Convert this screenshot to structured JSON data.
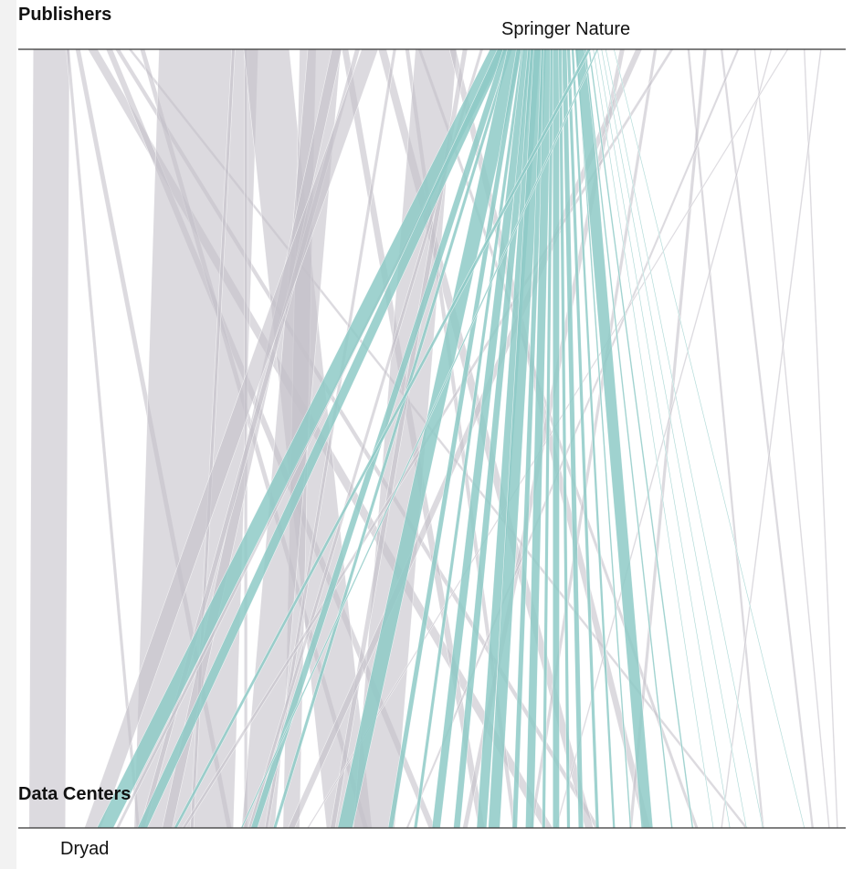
{
  "header": {
    "top_axis_title": "Publishers",
    "bottom_axis_title": "Data Centers"
  },
  "labels": {
    "top_highlight": "Springer Nature",
    "bottom_highlight": "Dryad"
  },
  "colors": {
    "highlight": "#8ecac7",
    "gray": "#c4c1c9",
    "axis": "#333333",
    "background": "#ffffff"
  },
  "chart_data": {
    "type": "parallel-sets",
    "top_axis": "Publishers",
    "bottom_axis": "Data Centers",
    "highlighted_publisher": "Springer Nature",
    "highlighted_data_center": "Dryad",
    "flows": [
      {
        "from": 0.04,
        "to": 0.035,
        "weight": 0.044,
        "hl": false
      },
      {
        "from": 0.06,
        "to": 0.145,
        "weight": 0.004,
        "hl": false
      },
      {
        "from": 0.072,
        "to": 0.255,
        "weight": 0.006,
        "hl": false
      },
      {
        "from": 0.09,
        "to": 0.64,
        "weight": 0.012,
        "hl": false
      },
      {
        "from": 0.11,
        "to": 0.5,
        "weight": 0.008,
        "hl": false
      },
      {
        "from": 0.12,
        "to": 0.7,
        "weight": 0.006,
        "hl": false
      },
      {
        "from": 0.135,
        "to": 0.88,
        "weight": 0.004,
        "hl": false
      },
      {
        "from": 0.15,
        "to": 0.42,
        "weight": 0.006,
        "hl": false
      },
      {
        "from": 0.23,
        "to": 0.2,
        "weight": 0.12,
        "hl": false
      },
      {
        "from": 0.26,
        "to": 0.21,
        "weight": 0.004,
        "hl": false
      },
      {
        "from": 0.275,
        "to": 0.275,
        "weight": 0.004,
        "hl": false
      },
      {
        "from": 0.3,
        "to": 0.4,
        "weight": 0.055,
        "hl": false
      },
      {
        "from": 0.35,
        "to": 0.33,
        "weight": 0.02,
        "hl": false
      },
      {
        "from": 0.37,
        "to": 0.29,
        "weight": 0.04,
        "hl": false
      },
      {
        "from": 0.385,
        "to": 0.18,
        "weight": 0.012,
        "hl": false
      },
      {
        "from": 0.395,
        "to": 0.56,
        "weight": 0.008,
        "hl": false
      },
      {
        "from": 0.41,
        "to": 0.15,
        "weight": 0.006,
        "hl": false
      },
      {
        "from": 0.425,
        "to": 0.09,
        "weight": 0.02,
        "hl": false
      },
      {
        "from": 0.44,
        "to": 0.69,
        "weight": 0.01,
        "hl": false
      },
      {
        "from": 0.455,
        "to": 0.3,
        "weight": 0.004,
        "hl": false
      },
      {
        "from": 0.47,
        "to": 0.6,
        "weight": 0.005,
        "hl": false
      },
      {
        "from": 0.485,
        "to": 0.82,
        "weight": 0.004,
        "hl": false
      },
      {
        "from": 0.505,
        "to": 0.43,
        "weight": 0.05,
        "hl": false
      },
      {
        "from": 0.525,
        "to": 0.76,
        "weight": 0.008,
        "hl": false
      },
      {
        "from": 0.54,
        "to": 0.38,
        "weight": 0.006,
        "hl": false
      },
      {
        "from": 0.56,
        "to": 0.28,
        "weight": 0.004,
        "hl": false
      },
      {
        "from": 0.585,
        "to": 0.12,
        "weight": 0.004,
        "hl": false
      },
      {
        "from": 0.58,
        "to": 0.105,
        "weight": 0.02,
        "hl": true
      },
      {
        "from": 0.585,
        "to": 0.15,
        "weight": 0.012,
        "hl": true
      },
      {
        "from": 0.59,
        "to": 0.285,
        "weight": 0.008,
        "hl": true
      },
      {
        "from": 0.595,
        "to": 0.31,
        "weight": 0.004,
        "hl": true
      },
      {
        "from": 0.6,
        "to": 0.395,
        "weight": 0.018,
        "hl": true
      },
      {
        "from": 0.605,
        "to": 0.45,
        "weight": 0.006,
        "hl": true
      },
      {
        "from": 0.61,
        "to": 0.48,
        "weight": 0.004,
        "hl": true
      },
      {
        "from": 0.615,
        "to": 0.505,
        "weight": 0.01,
        "hl": true
      },
      {
        "from": 0.62,
        "to": 0.53,
        "weight": 0.008,
        "hl": true
      },
      {
        "from": 0.625,
        "to": 0.56,
        "weight": 0.012,
        "hl": true
      },
      {
        "from": 0.63,
        "to": 0.575,
        "weight": 0.014,
        "hl": true
      },
      {
        "from": 0.635,
        "to": 0.6,
        "weight": 0.006,
        "hl": true
      },
      {
        "from": 0.64,
        "to": 0.618,
        "weight": 0.01,
        "hl": true
      },
      {
        "from": 0.645,
        "to": 0.635,
        "weight": 0.004,
        "hl": true
      },
      {
        "from": 0.65,
        "to": 0.65,
        "weight": 0.008,
        "hl": true
      },
      {
        "from": 0.655,
        "to": 0.665,
        "weight": 0.004,
        "hl": true
      },
      {
        "from": 0.66,
        "to": 0.68,
        "weight": 0.006,
        "hl": true
      },
      {
        "from": 0.665,
        "to": 0.7,
        "weight": 0.004,
        "hl": true
      },
      {
        "from": 0.67,
        "to": 0.72,
        "weight": 0.003,
        "hl": true
      },
      {
        "from": 0.675,
        "to": 0.74,
        "weight": 0.002,
        "hl": true
      },
      {
        "from": 0.68,
        "to": 0.76,
        "weight": 0.014,
        "hl": true
      },
      {
        "from": 0.685,
        "to": 0.79,
        "weight": 0.002,
        "hl": true
      },
      {
        "from": 0.69,
        "to": 0.815,
        "weight": 0.002,
        "hl": true
      },
      {
        "from": 0.695,
        "to": 0.84,
        "weight": 0.001,
        "hl": true
      },
      {
        "from": 0.7,
        "to": 0.86,
        "weight": 0.001,
        "hl": true
      },
      {
        "from": 0.705,
        "to": 0.88,
        "weight": 0.001,
        "hl": true
      },
      {
        "from": 0.71,
        "to": 0.9,
        "weight": 0.001,
        "hl": true
      },
      {
        "from": 0.69,
        "to": 0.19,
        "weight": 0.004,
        "hl": true
      },
      {
        "from": 0.7,
        "to": 0.27,
        "weight": 0.002,
        "hl": true
      },
      {
        "from": 0.72,
        "to": 0.95,
        "weight": 0.001,
        "hl": true
      },
      {
        "from": 0.73,
        "to": 0.54,
        "weight": 0.006,
        "hl": false
      },
      {
        "from": 0.75,
        "to": 0.33,
        "weight": 0.008,
        "hl": false
      },
      {
        "from": 0.77,
        "to": 0.62,
        "weight": 0.004,
        "hl": false
      },
      {
        "from": 0.79,
        "to": 0.2,
        "weight": 0.004,
        "hl": false
      },
      {
        "from": 0.81,
        "to": 0.9,
        "weight": 0.003,
        "hl": false
      },
      {
        "from": 0.83,
        "to": 0.74,
        "weight": 0.004,
        "hl": false
      },
      {
        "from": 0.85,
        "to": 0.96,
        "weight": 0.003,
        "hl": false
      },
      {
        "from": 0.87,
        "to": 0.47,
        "weight": 0.003,
        "hl": false
      },
      {
        "from": 0.89,
        "to": 0.98,
        "weight": 0.002,
        "hl": false
      },
      {
        "from": 0.91,
        "to": 0.65,
        "weight": 0.002,
        "hl": false
      },
      {
        "from": 0.93,
        "to": 0.35,
        "weight": 0.002,
        "hl": false
      },
      {
        "from": 0.95,
        "to": 0.99,
        "weight": 0.002,
        "hl": false
      },
      {
        "from": 0.97,
        "to": 0.85,
        "weight": 0.002,
        "hl": false
      }
    ]
  }
}
